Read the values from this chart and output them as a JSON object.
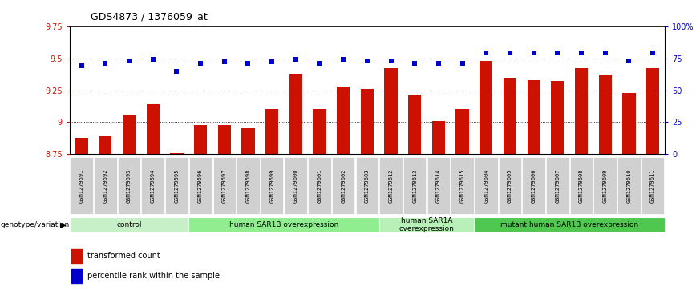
{
  "title": "GDS4873 / 1376059_at",
  "samples": [
    "GSM1279591",
    "GSM1279592",
    "GSM1279593",
    "GSM1279594",
    "GSM1279595",
    "GSM1279596",
    "GSM1279597",
    "GSM1279598",
    "GSM1279599",
    "GSM1279600",
    "GSM1279601",
    "GSM1279602",
    "GSM1279603",
    "GSM1279612",
    "GSM1279613",
    "GSM1279614",
    "GSM1279615",
    "GSM1279604",
    "GSM1279605",
    "GSM1279606",
    "GSM1279607",
    "GSM1279608",
    "GSM1279609",
    "GSM1279610",
    "GSM1279611"
  ],
  "transformed_count": [
    8.88,
    8.89,
    9.05,
    9.14,
    8.76,
    8.98,
    8.98,
    8.95,
    9.1,
    9.38,
    9.1,
    9.28,
    9.26,
    9.42,
    9.21,
    9.01,
    9.1,
    9.48,
    9.35,
    9.33,
    9.32,
    9.42,
    9.37,
    9.23,
    9.42
  ],
  "percentile_rank": [
    69,
    71,
    73,
    74,
    65,
    71,
    72,
    71,
    72,
    74,
    71,
    74,
    73,
    73,
    71,
    71,
    71,
    79,
    79,
    79,
    79,
    79,
    79,
    73,
    79
  ],
  "ylim_left": [
    8.75,
    9.75
  ],
  "ylim_right": [
    0,
    100
  ],
  "yticks_left": [
    8.75,
    9.0,
    9.25,
    9.5,
    9.75
  ],
  "yticks_right": [
    0,
    25,
    50,
    75,
    100
  ],
  "ytick_labels_left": [
    "8.75",
    "9",
    "9.25",
    "9.5",
    "9.75"
  ],
  "ytick_labels_right": [
    "0",
    "25",
    "50",
    "75",
    "100%"
  ],
  "bar_color": "#cc1100",
  "dot_color": "#0000cc",
  "groups": [
    {
      "label": "control",
      "start": 0,
      "end": 5,
      "color": "#c8f0c8"
    },
    {
      "label": "human SAR1B overexpression",
      "start": 5,
      "end": 13,
      "color": "#90ee90"
    },
    {
      "label": "human SAR1A\noverexpression",
      "start": 13,
      "end": 17,
      "color": "#b8f0b8"
    },
    {
      "label": "mutant human SAR1B overexpression",
      "start": 17,
      "end": 25,
      "color": "#50c850"
    }
  ],
  "legend_items": [
    {
      "color": "#cc1100",
      "label": "transformed count"
    },
    {
      "color": "#0000cc",
      "label": "percentile rank within the sample"
    }
  ],
  "genotype_label": "genotype/variation",
  "background_color": "#ffffff",
  "bar_width": 0.55
}
